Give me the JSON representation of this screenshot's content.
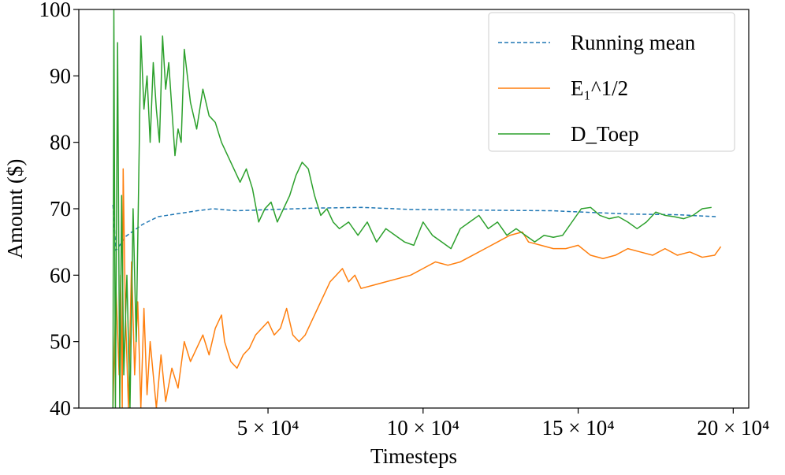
{
  "chart_data": {
    "type": "line",
    "xlabel": "Timesteps",
    "ylabel": "Amount ($)",
    "xlim": [
      -11000,
      205000
    ],
    "ylim": [
      40,
      100
    ],
    "xticks": [
      {
        "value": 50000,
        "label": "5 × 10⁴"
      },
      {
        "value": 100000,
        "label": "10 × 10⁴"
      },
      {
        "value": 150000,
        "label": "15 × 10⁴"
      },
      {
        "value": 200000,
        "label": "20 × 10⁴"
      }
    ],
    "yticks": [
      40,
      50,
      60,
      70,
      80,
      90,
      100
    ],
    "legend": "upper right",
    "series": [
      {
        "name": "Running mean",
        "color": "#1f77b4",
        "dashed": true,
        "x": [
          0,
          1000,
          4300,
          9400,
          14500,
          27200,
          32200,
          39800,
          65200,
          80500,
          95700,
          116000,
          141400,
          156600,
          166700,
          182000,
          194700
        ],
        "values": [
          70.6,
          63.7,
          65.9,
          67.6,
          68.8,
          69.7,
          70.0,
          69.7,
          70.1,
          70.2,
          69.9,
          69.8,
          69.7,
          69.4,
          69.2,
          69.1,
          68.8
        ]
      },
      {
        "name": "E₁^1/2",
        "color": "#ff7f0e",
        "dashed": false,
        "x": [
          0,
          1000,
          2000,
          2500,
          3000,
          3300,
          4000,
          5000,
          6000,
          7000,
          8000,
          9000,
          10000,
          11000,
          12000,
          14000,
          15500,
          17000,
          19000,
          21000,
          23000,
          25000,
          27000,
          29000,
          31000,
          33000,
          35000,
          36000,
          38000,
          40000,
          42000,
          44000,
          46000,
          48000,
          50000,
          52000,
          54000,
          56000,
          58000,
          60000,
          62000,
          64000,
          66000,
          68000,
          70000,
          72000,
          74000,
          76000,
          78000,
          80000,
          84000,
          88000,
          92000,
          96000,
          100000,
          104000,
          108000,
          112000,
          116000,
          120000,
          124000,
          128000,
          132000,
          134000,
          138000,
          142000,
          146000,
          150000,
          154000,
          158000,
          162000,
          166000,
          170000,
          174000,
          178000,
          182000,
          186000,
          190000,
          194000,
          196000
        ],
        "values": [
          40,
          58,
          45,
          60,
          40,
          76,
          55,
          40,
          62,
          45,
          56,
          40,
          55,
          42,
          50,
          40,
          48,
          41,
          46,
          43,
          50,
          47,
          49,
          51,
          48,
          52,
          54,
          50,
          47,
          46,
          48,
          49,
          51,
          52,
          53,
          51,
          52,
          55,
          51,
          50,
          51,
          53,
          55,
          57,
          59,
          60,
          61,
          59,
          60,
          58,
          58.5,
          59,
          59.5,
          60,
          61,
          62,
          61.5,
          62,
          63,
          64,
          65,
          66,
          66.5,
          65,
          64.5,
          64,
          64,
          64.5,
          63,
          62.5,
          63,
          64,
          63.5,
          63,
          64,
          63,
          63.5,
          62.7,
          63,
          64.3
        ]
      },
      {
        "name": "D_Toep",
        "color": "#2ca02c",
        "dashed": false,
        "x": [
          0,
          300,
          800,
          1500,
          2200,
          2800,
          3500,
          4500,
          5500,
          6500,
          7500,
          8500,
          9000,
          10000,
          11000,
          12000,
          13000,
          14000,
          15000,
          16000,
          17000,
          18000,
          19000,
          20000,
          21000,
          22000,
          23000,
          24000,
          25000,
          27000,
          29000,
          31000,
          33000,
          35000,
          37000,
          39000,
          41000,
          43000,
          45000,
          47000,
          49000,
          51000,
          53000,
          55000,
          57000,
          59000,
          61000,
          63000,
          65000,
          67000,
          69000,
          71000,
          73000,
          76000,
          79000,
          82000,
          85000,
          88000,
          91000,
          94000,
          97000,
          100000,
          103000,
          106000,
          109000,
          112000,
          115000,
          118000,
          121000,
          124000,
          127000,
          130000,
          133000,
          136000,
          139000,
          142000,
          145000,
          148000,
          151000,
          154000,
          157000,
          160000,
          163000,
          166000,
          169000,
          172000,
          175000,
          178000,
          181000,
          184000,
          187000,
          190000,
          193000
        ],
        "values": [
          40,
          100,
          40,
          95,
          40,
          72,
          45,
          60,
          40,
          70,
          50,
          80,
          96,
          85,
          90,
          80,
          92,
          85,
          80,
          96,
          88,
          92,
          85,
          78,
          82,
          80,
          94,
          90,
          86,
          82,
          88,
          84,
          83,
          80,
          78,
          76,
          74,
          76,
          73,
          68,
          70,
          71,
          68,
          70,
          72,
          75,
          77,
          76,
          72,
          69,
          70,
          68,
          67,
          68,
          66,
          68,
          65,
          67,
          66,
          65,
          64.5,
          68,
          66,
          65,
          64,
          67,
          68,
          69,
          67,
          68,
          66,
          67,
          66,
          65,
          66,
          65.7,
          66,
          68,
          70,
          70.2,
          69,
          68.5,
          68.8,
          68,
          67,
          68,
          69.5,
          69,
          68.8,
          68.5,
          69,
          70,
          70.2
        ]
      }
    ]
  }
}
